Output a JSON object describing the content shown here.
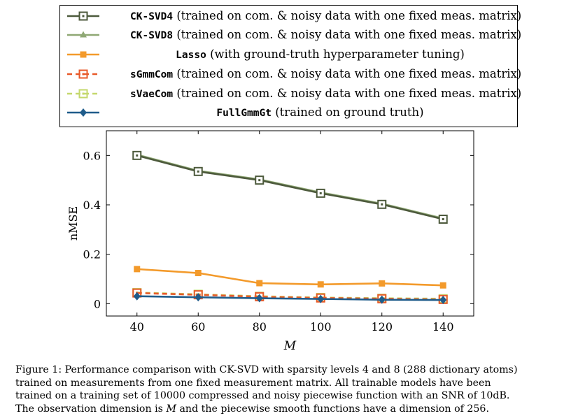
{
  "chart_data": {
    "type": "line",
    "xlabel": "M",
    "ylabel": "nMSE",
    "x": [
      40,
      60,
      80,
      100,
      120,
      140
    ],
    "xlim": [
      30,
      150
    ],
    "ylim": [
      -0.05,
      0.7
    ],
    "xticks": [
      40,
      60,
      80,
      100,
      120,
      140
    ],
    "yticks": [
      0,
      0.2,
      0.4,
      0.6
    ],
    "ytick_labels": [
      "0",
      "0.2",
      "0.4",
      "0.6"
    ],
    "grid": false,
    "legend_position": "top, outside plot",
    "series": [
      {
        "name": "CK-SVD4",
        "desc": "(trained on com. & noisy data with one fixed meas. matrix)",
        "color": "#4d5a3c",
        "marker": "square-dot",
        "dash": "solid",
        "values": [
          0.6,
          0.535,
          0.5,
          0.447,
          0.402,
          0.342
        ]
      },
      {
        "name": "CK-SVD8",
        "desc": "(trained on com. & noisy data with one fixed meas. matrix)",
        "color": "#8fa874",
        "marker": "triangle",
        "dash": "solid",
        "values": [
          0.603,
          0.538,
          0.503,
          0.45,
          0.405,
          0.345
        ]
      },
      {
        "name": "Lasso",
        "desc": "(with ground-truth hyperparameter tuning)",
        "color": "#f39a2b",
        "marker": "square",
        "dash": "solid",
        "values": [
          0.14,
          0.124,
          0.083,
          0.078,
          0.082,
          0.074
        ]
      },
      {
        "name": "sGmmCom",
        "desc": "(trained on com. & noisy data with one fixed meas. matrix)",
        "color": "#e85a2a",
        "marker": "square-open",
        "dash": "dashed",
        "values": [
          0.043,
          0.036,
          0.028,
          0.023,
          0.02,
          0.017
        ]
      },
      {
        "name": "sVaeCom",
        "desc": "(trained on com. & noisy data with one fixed meas. matrix)",
        "color": "#c5d86d",
        "marker": "square-open",
        "dash": "dashed",
        "values": [
          0.045,
          0.038,
          0.03,
          0.025,
          0.022,
          0.02
        ]
      },
      {
        "name": "FullGmmGt",
        "desc": "(trained on ground truth)",
        "color": "#1f5c8b",
        "marker": "diamond",
        "dash": "solid",
        "values": [
          0.03,
          0.026,
          0.022,
          0.019,
          0.016,
          0.015
        ]
      }
    ]
  },
  "caption": {
    "lines": [
      "Figure 1: Performance comparison with CK-SVD with sparsity levels 4 and 8 (288 dictionary atoms)",
      "trained on measurements from one fixed measurement matrix.  All trainable models have been",
      "trained on a training set of 10000 compressed and noisy piecewise function with an SNR of 10dB.",
      "The observation dimension is ",
      " and the piecewise smooth functions have a dimension of 256."
    ],
    "symbol": "M"
  }
}
